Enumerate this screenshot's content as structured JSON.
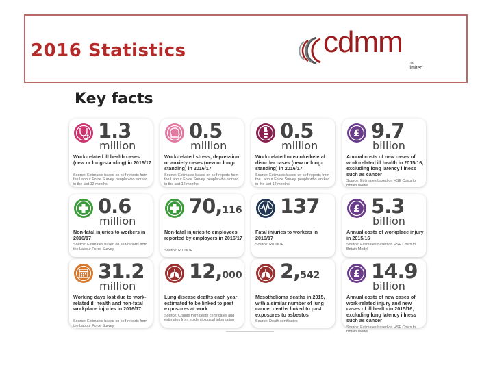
{
  "header": {
    "title": "2016 Statistics",
    "logo_text": "cdmm",
    "logo_sub": "uk limited"
  },
  "heading": "Key facts",
  "colors": {
    "pink": "#c9356f",
    "light_pink": "#e07aa0",
    "maroon": "#8a2050",
    "purple": "#6a3d8a",
    "green": "#3c9a3a",
    "light_green": "#6cbd5a",
    "navy": "#1f3552",
    "orange": "#d9772b",
    "brown": "#9b2f2f",
    "title_red": "#b22a2a"
  },
  "cards": [
    {
      "icon": "stethoscope-icon",
      "num": "1.3",
      "suffix": "",
      "unit": "million",
      "desc": "Work-related ill health cases (new or long-standing) in 2016/17",
      "src": "Source: Estimates based on self-reports from the Labour Force Survey, people who worked in the last 12 months"
    },
    {
      "icon": "head-icon",
      "num": "0.5",
      "suffix": "",
      "unit": "million",
      "desc": "Work-related stress, depression or anxiety cases (new or long-standing) in 2016/17",
      "src": "Source: Estimates based on self-reports from the Labour Force Survey, people who worked in the last 12 months"
    },
    {
      "icon": "spine-icon",
      "num": "0.5",
      "suffix": "",
      "unit": "million",
      "desc": "Work-related musculoskeletal disorder cases (new or long-standing) in 2016/17",
      "src": "Source: Estimates based on self-reports from the Labour Force Survey, people who worked in the last 12 months"
    },
    {
      "icon": "pound-icon",
      "num": "9.7",
      "suffix": "",
      "unit": "billion",
      "desc": "Annual costs of new cases of work-related ill health in 2015/16, excluding long latency illness such as cancer",
      "src": "Source: Estimates based on HSE Costs to Britain Model"
    },
    {
      "icon": "first-aid-icon",
      "num": "0.6",
      "suffix": "",
      "unit": "million",
      "desc": "Non-fatal injuries to workers in 2016/17",
      "src": "Source: Estimates based on self-reports from the Labour Force Survey"
    },
    {
      "icon": "first-aid-icon",
      "num": "70,",
      "suffix": "116",
      "unit": "",
      "desc": "Non-fatal injuries to employees reported by employers in 2016/17",
      "src": "Source: RIDDOR"
    },
    {
      "icon": "heartbeat-icon",
      "num": "137",
      "suffix": "",
      "unit": "",
      "desc": "Fatal injuries to workers in 2016/17",
      "src": "Source: RIDDOR"
    },
    {
      "icon": "pound-icon",
      "num": "5.3",
      "suffix": "",
      "unit": "billion",
      "desc": "Annual costs of workplace injury in 2015/16",
      "src": "Source: Estimates based on HSE Costs to Britain Model"
    },
    {
      "icon": "calendar-icon",
      "num": "31.2",
      "suffix": "",
      "unit": "million",
      "desc": "Working days lost due to work-related ill health and non-fatal workplace injuries in 2016/17",
      "src": "Source: Estimates based on self-reports from the Labour Force Survey"
    },
    {
      "icon": "lungs-icon",
      "num": "12,",
      "suffix": "000",
      "unit": "",
      "desc": "Lung disease deaths each year estimated to be linked to past exposures at work",
      "src": "Source: Counts from death certificates and estimates from epidemiological information"
    },
    {
      "icon": "lungs-icon",
      "num": "2,",
      "suffix": "542",
      "unit": "",
      "desc": "Mesothelioma deaths in 2015, with a similar number of lung cancer deaths linked to past exposures to asbestos",
      "src": "Source: Death certificates"
    },
    {
      "icon": "pound-icon",
      "num": "14.9",
      "suffix": "",
      "unit": "billion",
      "desc": "Annual costs of new cases of work-related injury and new cases of ill health in 2015/16, excluding long latency illness such as cancer",
      "src": "Source: Estimates based on HSE Costs to Britain Model"
    }
  ]
}
